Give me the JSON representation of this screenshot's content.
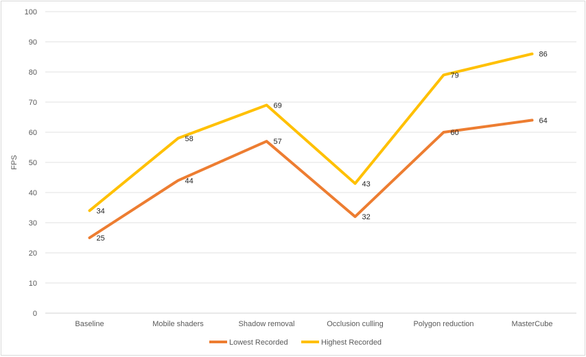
{
  "chart_data": {
    "type": "line",
    "ylabel": "FPS",
    "ylim": [
      0,
      100
    ],
    "ytick_step": 10,
    "categories": [
      "Baseline",
      "Mobile shaders",
      "Shadow removal",
      "Occlusion culling",
      "Polygon reduction",
      "MasterCube"
    ],
    "series": [
      {
        "name": "Lowest Recorded",
        "color": "#ed7d31",
        "values": [
          25,
          44,
          57,
          32,
          60,
          64
        ]
      },
      {
        "name": "Highest Recorded",
        "color": "#ffc000",
        "values": [
          34,
          58,
          69,
          43,
          79,
          86
        ]
      }
    ],
    "grid": true,
    "legend": "bottom"
  }
}
